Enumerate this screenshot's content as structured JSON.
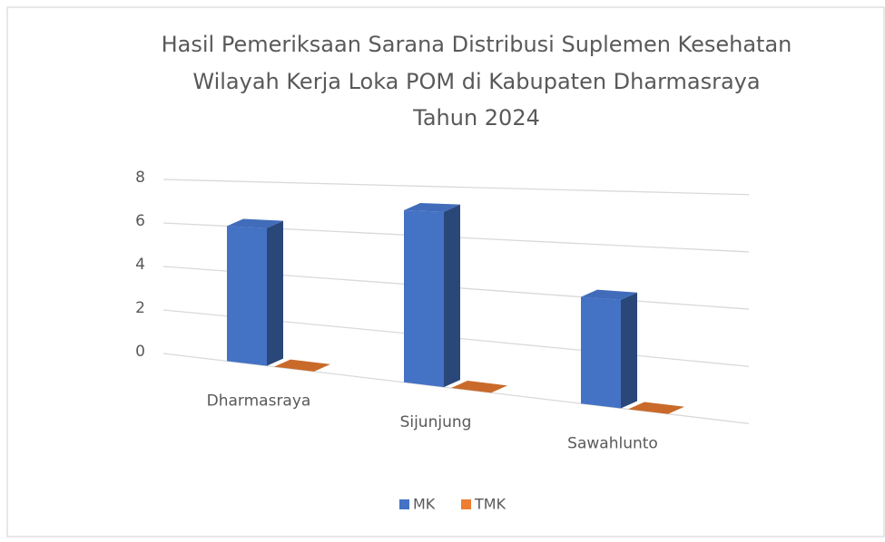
{
  "chart_data": {
    "type": "bar3d",
    "title": [
      "Hasil Pemeriksaan Sarana Distribusi Suplemen Kesehatan",
      "Wilayah Kerja Loka POM di Kabupaten Dharmasraya",
      "Tahun 2024"
    ],
    "categories": [
      "Dharmasraya",
      "Sijunjung",
      "Sawahlunto"
    ],
    "series": [
      {
        "name": "MK",
        "color": "#4472c4",
        "values": [
          6,
          7,
          4
        ]
      },
      {
        "name": "TMK",
        "color": "#ed7d31",
        "values": [
          0,
          0,
          0
        ]
      }
    ],
    "ylim": [
      0,
      8
    ],
    "yticks": [
      0,
      2,
      4,
      6,
      8
    ],
    "grid": true,
    "legend": "bottom"
  }
}
